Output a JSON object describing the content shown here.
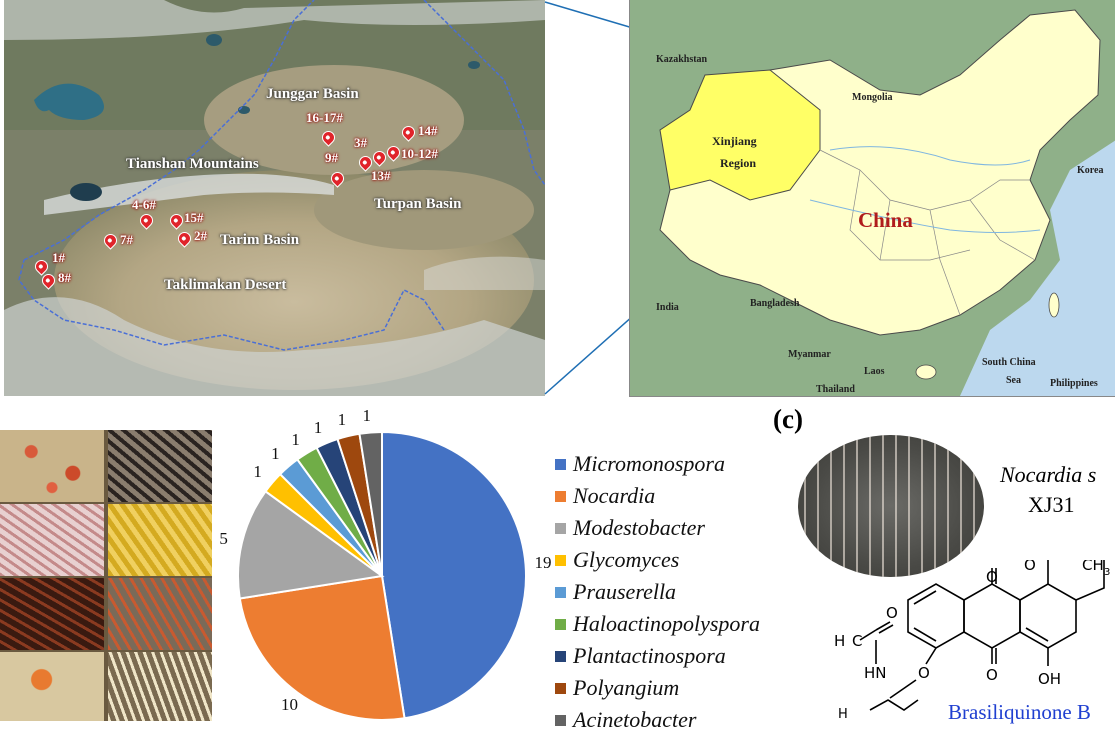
{
  "panel_a": {
    "labels": {
      "junggar": "Junggar Basin",
      "tianshan": "Tianshan Mountains",
      "turpan": "Turpan Basin",
      "tarim": "Tarim Basin",
      "taklimakan": "Taklimakan Desert"
    },
    "sites": [
      "1#",
      "8#",
      "7#",
      "4-6#",
      "15#",
      "2#",
      "16-17#",
      "9#",
      "3#",
      "10-12#",
      "14#",
      "13#"
    ]
  },
  "panel_b_map": {
    "labels": {
      "kazakhstan": "Kazakhstan",
      "mongolia": "Mongolia",
      "xinjiang_line1": "Xinjiang",
      "xinjiang_line2": "Region",
      "china": "China",
      "korea": "Korea",
      "india": "India",
      "bangladesh": "Bangladesh",
      "myanmar": "Myanmar",
      "laos": "Laos",
      "thailand": "Thailand",
      "south_china": "South China",
      "sea": "Sea",
      "philippines": "Philippines"
    },
    "colors": {
      "xinjiang": "#ffff66",
      "china": "#ffffcc",
      "neighbors": "#8fb089",
      "sea": "#bcd8ee"
    }
  },
  "chart_data": {
    "type": "pie",
    "categories": [
      "Micromonospora",
      "Nocardia",
      "Modestobacter",
      "Glycomyces",
      "Prauserella",
      "Haloactinopolyspora",
      "Plantactinospora",
      "Polyangium",
      "Acinetobacter"
    ],
    "values": [
      19,
      10,
      5,
      1,
      1,
      1,
      1,
      1,
      1
    ],
    "colors": [
      "#4472c4",
      "#ed7d31",
      "#a5a5a5",
      "#ffc000",
      "#5b9bd5",
      "#70ad47",
      "#264478",
      "#9e480e",
      "#636363"
    ],
    "data_labels": [
      "19",
      "10",
      "5",
      "1",
      "1",
      "1",
      "1",
      "1",
      "1"
    ],
    "legend_placement": "right"
  },
  "panel_c": {
    "letter": "(c)",
    "organism_line1": "Nocardia s",
    "organism_line2": "XJ31",
    "compound": "Brasiliquinone B",
    "atoms": {
      "o1": "O",
      "o2": "O",
      "o3": "O",
      "o4": "O",
      "o5": "O",
      "ch3": "CH",
      "ch3_sub": "3",
      "oh": "OH",
      "h3c": "H",
      "h3c_c": "C",
      "hn": "HN",
      "h3c2": "H"
    }
  }
}
